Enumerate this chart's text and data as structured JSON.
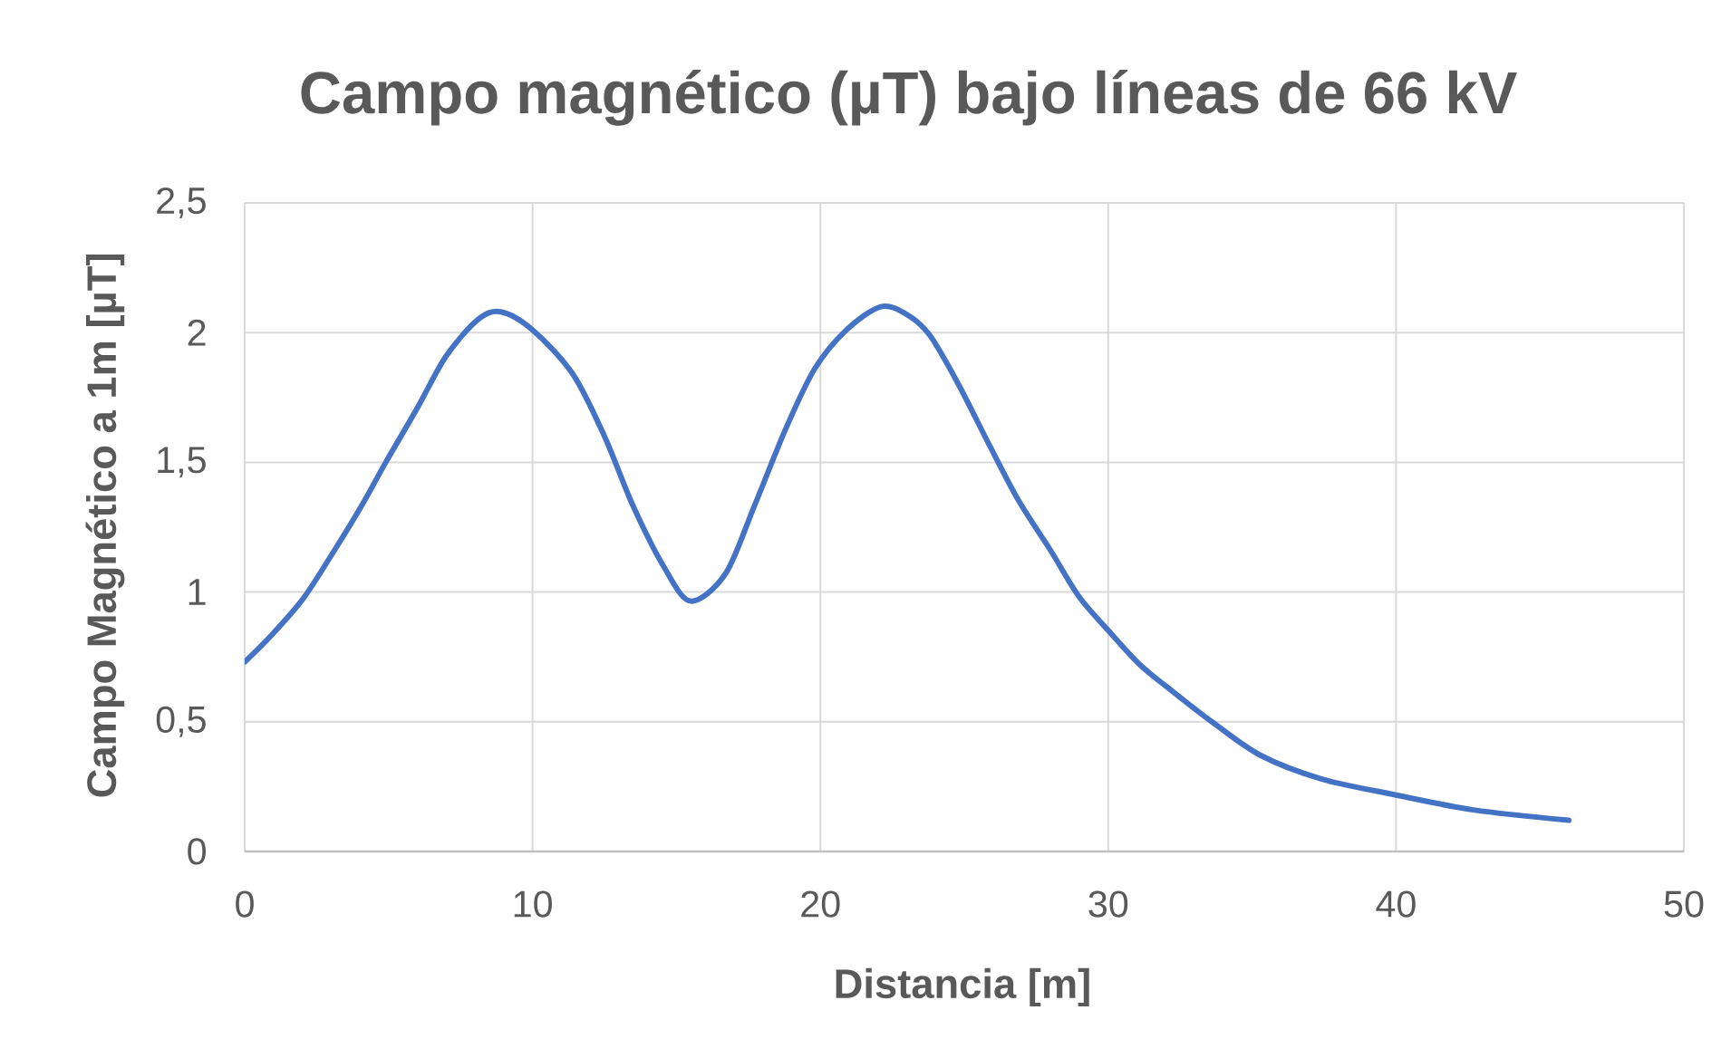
{
  "chart_data": {
    "type": "line",
    "title": "Campo magnético (µT) bajo líneas de 66 kV",
    "xlabel": "Distancia [m]",
    "ylabel": "Campo Magnético a 1m [µT]",
    "x": [
      0,
      0.9,
      2,
      3,
      4.1,
      4.9,
      6,
      7,
      8.1,
      8.9,
      10,
      11.4,
      12.5,
      13.5,
      14.6,
      15.5,
      16.7,
      17.7,
      18.8,
      19.8,
      20.9,
      22.1,
      23,
      23.8,
      24.8,
      25.9,
      26.9,
      28,
      29,
      30.1,
      31.1,
      32.2,
      33.6,
      35.3,
      37.4,
      39.9,
      42.7,
      46
    ],
    "values": [
      0.73,
      0.83,
      0.97,
      1.14,
      1.34,
      1.5,
      1.71,
      1.91,
      2.05,
      2.08,
      2.01,
      1.84,
      1.6,
      1.33,
      1.09,
      0.965,
      1.07,
      1.33,
      1.63,
      1.86,
      2.01,
      2.1,
      2.07,
      1.99,
      1.8,
      1.56,
      1.35,
      1.16,
      0.98,
      0.84,
      0.72,
      0.62,
      0.5,
      0.37,
      0.28,
      0.22,
      0.16,
      0.12
    ],
    "color": "#4472c4",
    "marker": "none",
    "line_style": "solid",
    "xlim": [
      0,
      50
    ],
    "ylim": [
      0,
      2.5
    ],
    "xticks": [
      0,
      10,
      20,
      30,
      40,
      50
    ],
    "yticks": [
      0,
      {
        "value": 0.5,
        "label": "0,5"
      },
      1,
      {
        "value": 1.5,
        "label": "1,5"
      },
      2,
      {
        "value": 2.5,
        "label": "2,5"
      }
    ],
    "grid": true
  }
}
